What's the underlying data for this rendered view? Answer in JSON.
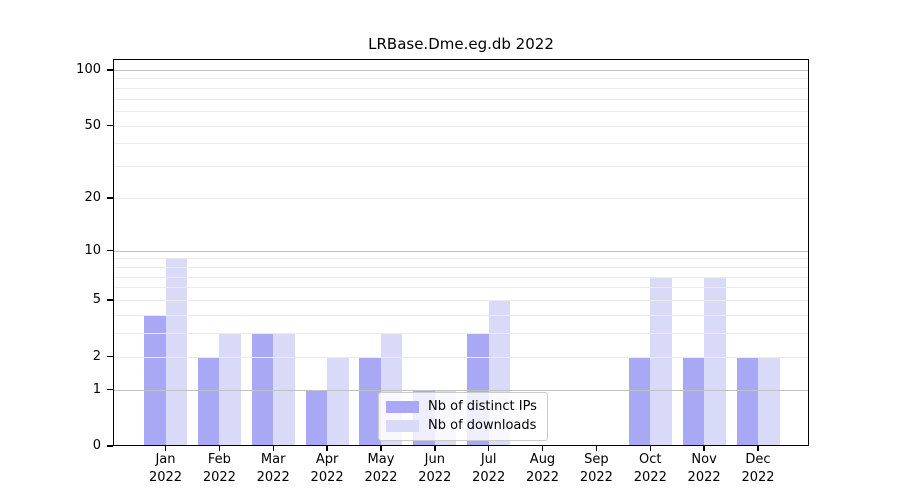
{
  "title": "LRBase.Dme.eg.db 2022",
  "chart_data": {
    "type": "bar",
    "title": "LRBase.Dme.eg.db 2022",
    "categories": [
      "Jan",
      "Feb",
      "Mar",
      "Apr",
      "May",
      "Jun",
      "Jul",
      "Aug",
      "Sep",
      "Oct",
      "Nov",
      "Dec"
    ],
    "year_label": "2022",
    "series": [
      {
        "name": "Nb of distinct IPs",
        "color": "#a8a8f4",
        "values": [
          4,
          2,
          3,
          1,
          2,
          1,
          3,
          0,
          0,
          2,
          2,
          2
        ]
      },
      {
        "name": "Nb of downloads",
        "color": "#d9d9f8",
        "values": [
          9,
          3,
          3,
          2,
          3,
          1,
          5,
          0,
          0,
          7,
          7,
          2
        ]
      }
    ],
    "y_axis": {
      "scale": "log1p",
      "ticks": [
        0,
        1,
        2,
        5,
        10,
        20,
        50,
        100
      ],
      "major_gridlines": [
        1,
        10,
        100
      ],
      "minor_gridlines": [
        2,
        3,
        4,
        5,
        6,
        7,
        8,
        9,
        20,
        30,
        40,
        50,
        60,
        70,
        80,
        90
      ],
      "range": [
        0,
        114
      ]
    },
    "xlabel": "",
    "ylabel": "",
    "grid": true,
    "legend_position": "lower center"
  },
  "colors": {
    "background": "#ffffff",
    "axis": "#000000",
    "minor_grid": "#ebebeb",
    "major_grid": "#c0c0c0"
  }
}
